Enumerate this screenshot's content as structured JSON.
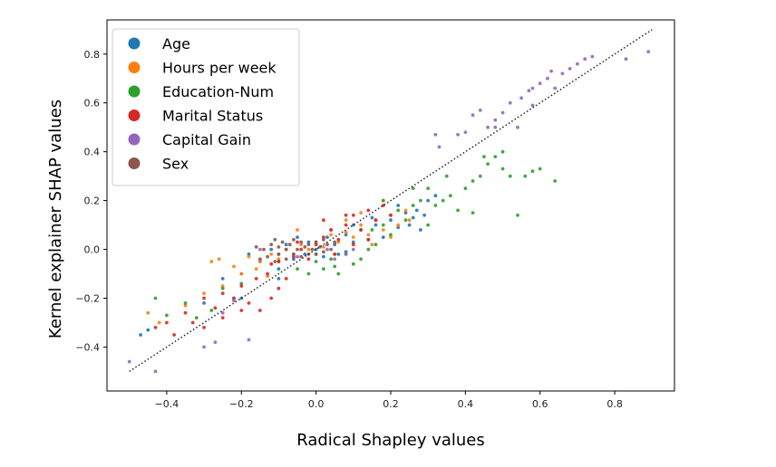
{
  "chart_data": {
    "type": "scatter",
    "xlabel": "Radical Shapley values",
    "ylabel": "Kernel explainer SHAP values",
    "xlim": [
      -0.56,
      0.96
    ],
    "ylim": [
      -0.58,
      0.94
    ],
    "x_ticks": [
      -0.4,
      -0.2,
      0.0,
      0.2,
      0.4,
      0.6,
      0.8
    ],
    "x_tick_labels": [
      "−0.4",
      "−0.2",
      "0.0",
      "0.2",
      "0.4",
      "0.6",
      "0.8"
    ],
    "y_ticks": [
      -0.4,
      -0.2,
      0.0,
      0.2,
      0.4,
      0.6,
      0.8
    ],
    "y_tick_labels": [
      "−0.4",
      "−0.2",
      "0.0",
      "0.2",
      "0.4",
      "0.6",
      "0.8"
    ],
    "grid": false,
    "legend_position": "top-left",
    "reference_line": {
      "style": "dotted",
      "color": "#222222",
      "from": [
        -0.5,
        -0.5
      ],
      "to": [
        0.9,
        0.9
      ]
    },
    "series": [
      {
        "name": "Age",
        "color": "#1f77b4",
        "points": [
          [
            -0.47,
            -0.35
          ],
          [
            -0.45,
            -0.33
          ],
          [
            -0.3,
            -0.22
          ],
          [
            -0.25,
            -0.12
          ],
          [
            -0.2,
            -0.1
          ],
          [
            -0.18,
            -0.02
          ],
          [
            -0.15,
            -0.05
          ],
          [
            -0.12,
            0.0
          ],
          [
            -0.1,
            -0.08
          ],
          [
            -0.08,
            0.02
          ],
          [
            -0.06,
            -0.04
          ],
          [
            -0.05,
            0.05
          ],
          [
            -0.03,
            -0.02
          ],
          [
            -0.02,
            0.03
          ],
          [
            0.0,
            0.0
          ],
          [
            0.02,
            -0.03
          ],
          [
            0.03,
            0.05
          ],
          [
            0.05,
            0.02
          ],
          [
            0.06,
            -0.02
          ],
          [
            0.08,
            0.06
          ],
          [
            0.1,
            0.03
          ],
          [
            0.12,
            0.08
          ],
          [
            0.14,
            0.04
          ],
          [
            0.16,
            0.1
          ],
          [
            0.18,
            0.05
          ],
          [
            0.2,
            0.12
          ],
          [
            0.22,
            0.09
          ],
          [
            0.24,
            0.15
          ],
          [
            0.25,
            0.1
          ],
          [
            0.27,
            0.16
          ],
          [
            0.29,
            0.14
          ],
          [
            0.3,
            0.2
          ],
          [
            0.32,
            0.22
          ],
          [
            0.28,
            0.08
          ],
          [
            0.26,
            0.13
          ],
          [
            0.22,
            0.18
          ],
          [
            0.15,
            0.13
          ],
          [
            0.1,
            0.1
          ],
          [
            -0.1,
            -0.12
          ],
          [
            -0.2,
            -0.2
          ],
          [
            0.08,
            -0.01
          ],
          [
            0.04,
            0.08
          ]
        ]
      },
      {
        "name": "Hours per week",
        "color": "#ff7f0e",
        "points": [
          [
            -0.45,
            -0.26
          ],
          [
            -0.42,
            -0.3
          ],
          [
            -0.35,
            -0.23
          ],
          [
            -0.3,
            -0.18
          ],
          [
            -0.28,
            -0.05
          ],
          [
            -0.26,
            -0.04
          ],
          [
            -0.22,
            -0.07
          ],
          [
            -0.2,
            -0.1
          ],
          [
            -0.18,
            -0.03
          ],
          [
            -0.16,
            -0.08
          ],
          [
            -0.15,
            -0.05
          ],
          [
            -0.12,
            -0.02
          ],
          [
            -0.1,
            -0.04
          ],
          [
            -0.08,
            0.0
          ],
          [
            -0.06,
            -0.02
          ],
          [
            -0.04,
            0.02
          ],
          [
            -0.02,
            0.0
          ],
          [
            0.0,
            0.03
          ],
          [
            0.02,
            0.01
          ],
          [
            0.04,
            0.06
          ],
          [
            0.06,
            0.03
          ],
          [
            0.08,
            0.07
          ],
          [
            0.1,
            0.05
          ],
          [
            0.12,
            0.1
          ],
          [
            0.14,
            0.06
          ],
          [
            0.16,
            0.12
          ],
          [
            0.18,
            0.08
          ],
          [
            0.2,
            0.14
          ],
          [
            0.22,
            0.1
          ],
          [
            0.24,
            0.16
          ],
          [
            0.25,
            0.12
          ],
          [
            0.18,
            0.2
          ],
          [
            0.12,
            0.15
          ],
          [
            -0.05,
            0.08
          ],
          [
            -0.25,
            -0.15
          ],
          [
            0.05,
            -0.02
          ],
          [
            0.15,
            0.02
          ],
          [
            0.2,
            0.05
          ],
          [
            0.08,
            0.12
          ],
          [
            -0.13,
            -0.11
          ]
        ]
      },
      {
        "name": "Education-Num",
        "color": "#2ca02c",
        "points": [
          [
            -0.43,
            -0.2
          ],
          [
            -0.4,
            -0.27
          ],
          [
            -0.35,
            -0.22
          ],
          [
            -0.32,
            -0.28
          ],
          [
            -0.28,
            -0.25
          ],
          [
            -0.25,
            -0.16
          ],
          [
            -0.22,
            -0.2
          ],
          [
            -0.2,
            -0.14
          ],
          [
            -0.1,
            -0.05
          ],
          [
            -0.05,
            -0.08
          ],
          [
            -0.02,
            -0.1
          ],
          [
            0.0,
            -0.05
          ],
          [
            0.02,
            -0.08
          ],
          [
            0.04,
            -0.04
          ],
          [
            0.05,
            -0.07
          ],
          [
            0.06,
            -0.1
          ],
          [
            0.08,
            -0.02
          ],
          [
            0.1,
            -0.06
          ],
          [
            0.12,
            -0.04
          ],
          [
            0.14,
            0.0
          ],
          [
            0.15,
            0.08
          ],
          [
            0.16,
            0.02
          ],
          [
            0.18,
            0.1
          ],
          [
            0.2,
            0.06
          ],
          [
            0.22,
            0.16
          ],
          [
            0.24,
            0.12
          ],
          [
            0.26,
            0.18
          ],
          [
            0.28,
            0.2
          ],
          [
            0.3,
            0.1
          ],
          [
            0.32,
            0.18
          ],
          [
            0.34,
            0.2
          ],
          [
            0.36,
            0.22
          ],
          [
            0.38,
            0.16
          ],
          [
            0.4,
            0.25
          ],
          [
            0.42,
            0.28
          ],
          [
            0.44,
            0.3
          ],
          [
            0.46,
            0.35
          ],
          [
            0.48,
            0.38
          ],
          [
            0.5,
            0.33
          ],
          [
            0.52,
            0.3
          ],
          [
            0.54,
            0.14
          ],
          [
            0.56,
            0.3
          ],
          [
            0.6,
            0.33
          ],
          [
            0.64,
            0.28
          ],
          [
            0.45,
            0.38
          ],
          [
            0.35,
            0.3
          ],
          [
            0.26,
            0.25
          ],
          [
            0.18,
            0.2
          ],
          [
            0.3,
            0.25
          ],
          [
            0.5,
            0.4
          ],
          [
            0.58,
            0.32
          ],
          [
            0.42,
            0.15
          ]
        ]
      },
      {
        "name": "Marital Status",
        "color": "#d62728",
        "points": [
          [
            -0.43,
            -0.32
          ],
          [
            -0.4,
            -0.3
          ],
          [
            -0.38,
            -0.35
          ],
          [
            -0.35,
            -0.26
          ],
          [
            -0.33,
            -0.3
          ],
          [
            -0.3,
            -0.2
          ],
          [
            -0.27,
            -0.24
          ],
          [
            -0.25,
            -0.18
          ],
          [
            -0.22,
            -0.2
          ],
          [
            -0.2,
            -0.15
          ],
          [
            -0.18,
            -0.22
          ],
          [
            -0.16,
            -0.12
          ],
          [
            -0.15,
            -0.25
          ],
          [
            -0.13,
            -0.1
          ],
          [
            -0.12,
            -0.2
          ],
          [
            -0.1,
            -0.05
          ],
          [
            -0.08,
            -0.12
          ],
          [
            -0.06,
            -0.03
          ],
          [
            -0.04,
            0.0
          ],
          [
            -0.02,
            -0.04
          ],
          [
            0.0,
            0.02
          ],
          [
            0.02,
            0.05
          ],
          [
            0.04,
            0.08
          ],
          [
            0.06,
            0.04
          ],
          [
            0.08,
            0.1
          ],
          [
            0.1,
            0.14
          ],
          [
            0.12,
            0.08
          ],
          [
            0.14,
            0.16
          ],
          [
            0.16,
            0.12
          ],
          [
            0.18,
            0.18
          ],
          [
            0.2,
            0.14
          ],
          [
            0.05,
            -0.02
          ],
          [
            -0.05,
            0.03
          ],
          [
            0.1,
            0.02
          ],
          [
            0.14,
            0.04
          ],
          [
            -0.12,
            -0.06
          ],
          [
            -0.2,
            -0.25
          ],
          [
            -0.25,
            -0.28
          ],
          [
            0.08,
            0.14
          ],
          [
            0.02,
            0.12
          ],
          [
            -0.3,
            -0.32
          ],
          [
            -0.1,
            -0.16
          ]
        ]
      },
      {
        "name": "Capital Gain",
        "color": "#9467bd",
        "points": [
          [
            -0.5,
            -0.46
          ],
          [
            -0.43,
            -0.5
          ],
          [
            -0.3,
            -0.4
          ],
          [
            -0.27,
            -0.38
          ],
          [
            -0.25,
            -0.26
          ],
          [
            -0.22,
            -0.21
          ],
          [
            -0.18,
            -0.37
          ],
          [
            -0.15,
            0.0
          ],
          [
            -0.1,
            -0.02
          ],
          [
            -0.05,
            -0.03
          ],
          [
            0.0,
            -0.02
          ],
          [
            0.03,
            0.0
          ],
          [
            0.05,
            -0.04
          ],
          [
            0.08,
            -0.02
          ],
          [
            0.1,
            0.0
          ],
          [
            0.32,
            0.47
          ],
          [
            0.33,
            0.42
          ],
          [
            0.38,
            0.47
          ],
          [
            0.4,
            0.48
          ],
          [
            0.42,
            0.55
          ],
          [
            0.44,
            0.57
          ],
          [
            0.46,
            0.5
          ],
          [
            0.48,
            0.53
          ],
          [
            0.5,
            0.56
          ],
          [
            0.52,
            0.6
          ],
          [
            0.54,
            0.5
          ],
          [
            0.55,
            0.62
          ],
          [
            0.57,
            0.65
          ],
          [
            0.58,
            0.59
          ],
          [
            0.6,
            0.68
          ],
          [
            0.62,
            0.7
          ],
          [
            0.64,
            0.66
          ],
          [
            0.66,
            0.72
          ],
          [
            0.68,
            0.74
          ],
          [
            0.7,
            0.76
          ],
          [
            0.72,
            0.78
          ],
          [
            0.74,
            0.79
          ],
          [
            0.83,
            0.78
          ],
          [
            0.89,
            0.81
          ],
          [
            0.63,
            0.73
          ],
          [
            0.58,
            0.66
          ],
          [
            0.48,
            0.5
          ]
        ]
      },
      {
        "name": "Sex",
        "color": "#8c564b",
        "points": [
          [
            -0.14,
            0.0
          ],
          [
            -0.13,
            -0.03
          ],
          [
            -0.12,
            0.02
          ],
          [
            -0.11,
            -0.05
          ],
          [
            -0.1,
            0.01
          ],
          [
            -0.1,
            -0.02
          ],
          [
            -0.09,
            0.03
          ],
          [
            -0.08,
            -0.04
          ],
          [
            -0.08,
            0.0
          ],
          [
            -0.07,
            0.02
          ],
          [
            -0.06,
            -0.02
          ],
          [
            -0.06,
            0.04
          ],
          [
            -0.05,
            0.0
          ],
          [
            -0.04,
            -0.03
          ],
          [
            -0.04,
            0.03
          ],
          [
            -0.03,
            0.01
          ],
          [
            -0.02,
            -0.02
          ],
          [
            -0.02,
            0.02
          ],
          [
            -0.01,
            0.0
          ],
          [
            0.0,
            0.03
          ],
          [
            0.0,
            -0.02
          ],
          [
            0.01,
            0.01
          ],
          [
            0.02,
            0.04
          ],
          [
            0.02,
            -0.01
          ],
          [
            0.03,
            0.02
          ],
          [
            0.04,
            0.0
          ],
          [
            0.05,
            0.03
          ],
          [
            -0.15,
            -0.04
          ],
          [
            -0.16,
            0.01
          ],
          [
            -0.11,
            0.04
          ]
        ]
      }
    ]
  }
}
